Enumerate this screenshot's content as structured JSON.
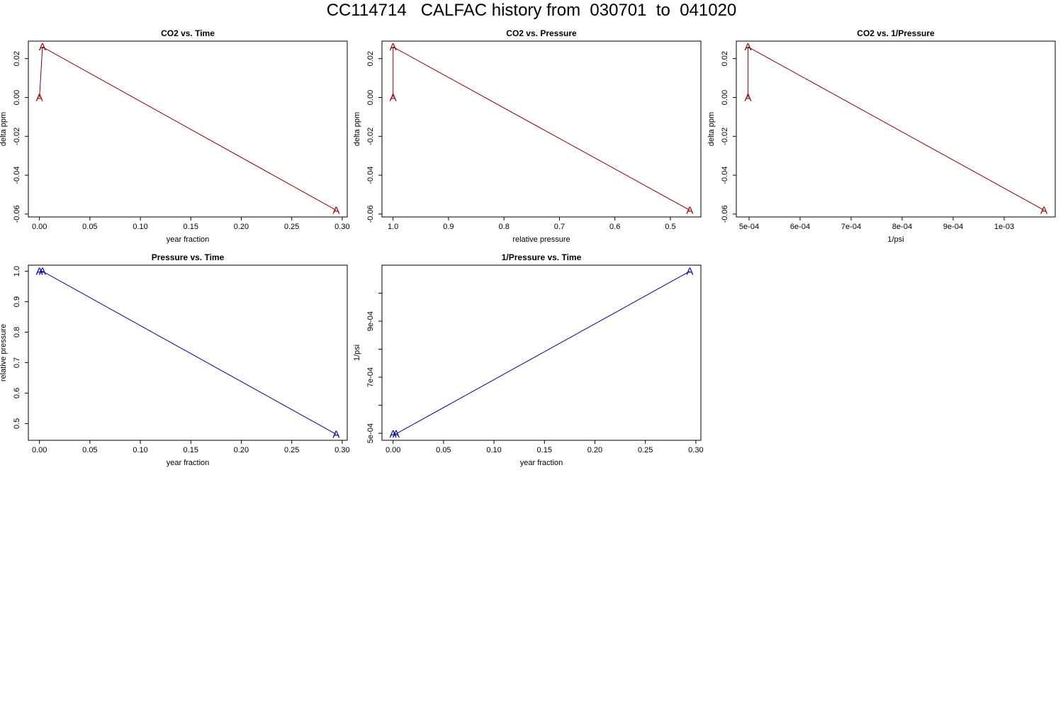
{
  "page": {
    "title": "CC114714   CALFAC history from  030701  to  041020"
  },
  "chart_data": [
    {
      "type": "line",
      "title": "CO2 vs. Time",
      "xlabel": "year fraction",
      "ylabel": "delta ppm",
      "x": [
        0.0,
        0.003,
        0.294
      ],
      "y": [
        0.0,
        0.026,
        -0.058
      ],
      "point_label": "A",
      "color": "#8b0000",
      "xlim": [
        -0.011,
        0.305
      ],
      "ylim": [
        -0.0615,
        0.029
      ],
      "xticks": [
        0.0,
        0.05,
        0.1,
        0.15,
        0.2,
        0.25,
        0.3
      ],
      "xtick_labels": [
        "0.00",
        "0.05",
        "0.10",
        "0.15",
        "0.20",
        "0.25",
        "0.30"
      ],
      "yticks": [
        -0.06,
        -0.04,
        -0.02,
        0.0,
        0.02
      ],
      "ytick_labels": [
        "-0.06",
        "-0.04",
        "-0.02",
        "0.00",
        "0.02"
      ]
    },
    {
      "type": "line",
      "title": "CO2 vs. Pressure",
      "xlabel": "relative pressure",
      "ylabel": "delta ppm",
      "x": [
        1.0,
        1.0,
        0.465
      ],
      "y": [
        0.0,
        0.026,
        -0.058
      ],
      "point_label": "A",
      "color": "#8b0000",
      "xlim": [
        1.02,
        0.445
      ],
      "ylim": [
        -0.0615,
        0.029
      ],
      "xticks": [
        1.0,
        0.9,
        0.8,
        0.7,
        0.6,
        0.5
      ],
      "xtick_labels": [
        "1.0",
        "0.9",
        "0.8",
        "0.7",
        "0.6",
        "0.5"
      ],
      "yticks": [
        -0.06,
        -0.04,
        -0.02,
        0.0,
        0.02
      ],
      "ytick_labels": [
        "-0.06",
        "-0.04",
        "-0.02",
        "0.00",
        "0.02"
      ]
    },
    {
      "type": "line",
      "title": "CO2 vs. 1/Pressure",
      "xlabel": "1/psi",
      "ylabel": "delta ppm",
      "x": [
        0.000498,
        0.000498,
        0.001078
      ],
      "y": [
        0.0,
        0.026,
        -0.058
      ],
      "point_label": "A",
      "color": "#8b0000",
      "xlim": [
        0.000475,
        0.0011
      ],
      "ylim": [
        -0.0615,
        0.029
      ],
      "xticks": [
        0.0005,
        0.0006,
        0.0007,
        0.0008,
        0.0009,
        0.001
      ],
      "xtick_labels": [
        "5e-04",
        "6e-04",
        "7e-04",
        "8e-04",
        "9e-04",
        "1e-03"
      ],
      "yticks": [
        -0.06,
        -0.04,
        -0.02,
        0.0,
        0.02
      ],
      "ytick_labels": [
        "-0.06",
        "-0.04",
        "-0.02",
        "0.00",
        "0.02"
      ]
    },
    {
      "type": "line",
      "title": "Pressure vs. Time",
      "xlabel": "year fraction",
      "ylabel": "relative pressure",
      "x": [
        0.0,
        0.003,
        0.294
      ],
      "y": [
        1.0,
        1.0,
        0.465
      ],
      "point_label": "A",
      "color": "#00008b",
      "xlim": [
        -0.011,
        0.305
      ],
      "ylim": [
        0.445,
        1.02
      ],
      "xticks": [
        0.0,
        0.05,
        0.1,
        0.15,
        0.2,
        0.25,
        0.3
      ],
      "xtick_labels": [
        "0.00",
        "0.05",
        "0.10",
        "0.15",
        "0.20",
        "0.25",
        "0.30"
      ],
      "yticks": [
        0.5,
        0.6,
        0.7,
        0.8,
        0.9,
        1.0
      ],
      "ytick_labels": [
        "0.5",
        "0.6",
        "0.7",
        "0.8",
        "0.9",
        "1.0"
      ]
    },
    {
      "type": "line",
      "title": "1/Pressure vs. Time",
      "xlabel": "year fraction",
      "ylabel": "1/psi",
      "x": [
        0.0,
        0.003,
        0.294
      ],
      "y": [
        0.000498,
        0.000498,
        0.001078
      ],
      "point_label": "A",
      "color": "#00008b",
      "xlim": [
        -0.011,
        0.305
      ],
      "ylim": [
        0.000475,
        0.0011
      ],
      "xticks": [
        0.0,
        0.05,
        0.1,
        0.15,
        0.2,
        0.25,
        0.3
      ],
      "xtick_labels": [
        "0.00",
        "0.05",
        "0.10",
        "0.15",
        "0.20",
        "0.25",
        "0.30"
      ],
      "yticks": [
        0.0005,
        0.0006,
        0.0007,
        0.0008,
        0.0009,
        0.001
      ],
      "ytick_labels": [
        "5e-04",
        "",
        "7e-04",
        "",
        "9e-04",
        ""
      ]
    }
  ]
}
